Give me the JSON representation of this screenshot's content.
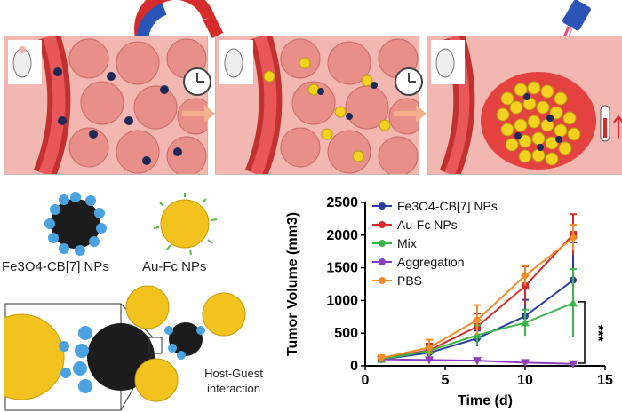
{
  "labels": {
    "fe3o4": "Fe3O4-CB[7] NPs",
    "aufc": "Au-Fc NPs",
    "hostguest": "Host-Guest interaction",
    "significance": "***"
  },
  "icons": [
    "magnet-icon",
    "clock-icon",
    "laser-icon",
    "thermometer-icon",
    "mouse-icon"
  ],
  "colors": {
    "fe3o4": "#2a3f9d",
    "aufc": "#d62b2b",
    "mix": "#3cb44b",
    "aggregation": "#8b3fb8",
    "pbs": "#f28c28"
  },
  "chart_data": {
    "type": "line",
    "title": "",
    "xlabel": "Time (d)",
    "ylabel": "Tumor Volume (mm3)",
    "xlim": [
      0,
      15
    ],
    "ylim": [
      0,
      2500
    ],
    "xticks": [
      0,
      5,
      10,
      15
    ],
    "yticks": [
      0,
      500,
      1000,
      1500,
      2000,
      2500
    ],
    "legend_position": "top-left",
    "x": [
      1,
      4,
      7,
      10,
      13
    ],
    "series": [
      {
        "name": "Fe3O4-CB[7] NPs",
        "values": [
          100,
          200,
          420,
          760,
          1310
        ],
        "errors": [
          30,
          50,
          120,
          250,
          580
        ]
      },
      {
        "name": "Au-Fc NPs",
        "values": [
          110,
          240,
          600,
          1220,
          2010
        ],
        "errors": [
          40,
          100,
          200,
          300,
          310
        ]
      },
      {
        "name": "Mix",
        "values": [
          100,
          230,
          470,
          660,
          960
        ],
        "errors": [
          30,
          80,
          150,
          200,
          520
        ]
      },
      {
        "name": "Aggregation",
        "values": [
          100,
          90,
          80,
          50,
          30
        ],
        "errors": [
          20,
          20,
          20,
          15,
          10
        ]
      },
      {
        "name": "PBS",
        "values": [
          120,
          280,
          700,
          1380,
          1960
        ],
        "errors": [
          40,
          120,
          230,
          150,
          200
        ]
      }
    ]
  }
}
